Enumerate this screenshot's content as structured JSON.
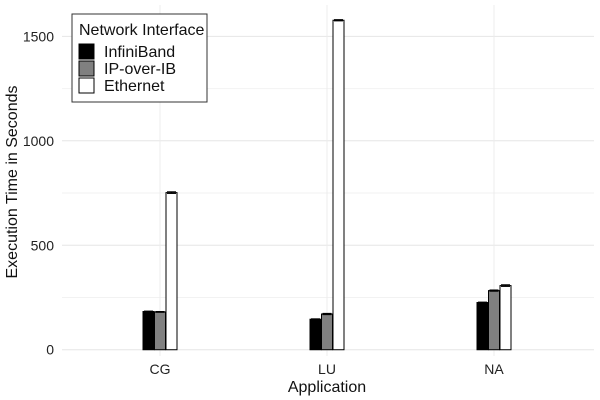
{
  "chart_data": {
    "type": "bar",
    "categories": [
      "CG",
      "LU",
      "NA"
    ],
    "series": [
      {
        "name": "InfiniBand",
        "values": [
          183,
          146,
          226
        ],
        "errors": [
          2,
          2,
          2
        ],
        "color": "#000000"
      },
      {
        "name": "IP-over-IB",
        "values": [
          181,
          171,
          283
        ],
        "errors": [
          2,
          3,
          3
        ],
        "color": "#808080"
      },
      {
        "name": "Ethernet",
        "values": [
          752,
          1577,
          307
        ],
        "errors": [
          4,
          3,
          4
        ],
        "color": "#ffffff"
      }
    ],
    "title": "",
    "xlabel": "Application",
    "ylabel": "Execution Time in Seconds",
    "ylim": [
      -30,
      1650
    ],
    "yticks": [
      0,
      500,
      1000,
      1500
    ],
    "grid": true,
    "legend": {
      "title": "Network Interface",
      "position": "top-left"
    }
  }
}
